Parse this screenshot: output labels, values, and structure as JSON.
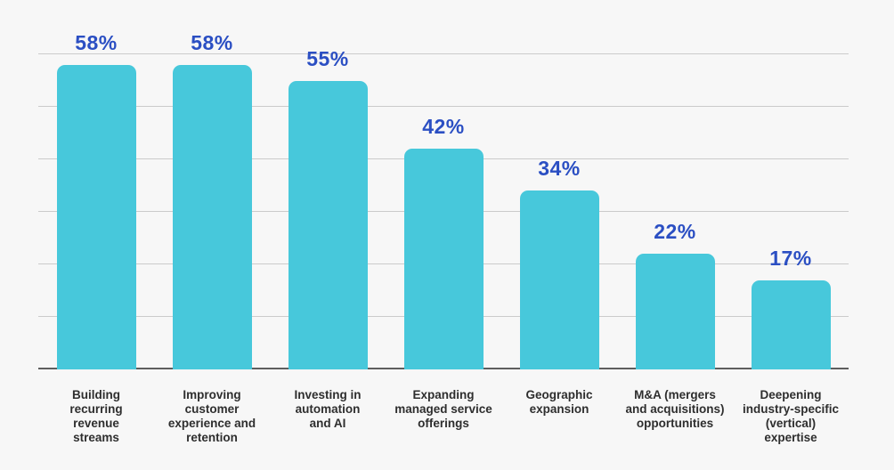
{
  "colors": {
    "background": "#f7f7f7",
    "bar": "#47c8db",
    "value_label": "#2b4fc3",
    "category_label": "#2e2e2e",
    "gridline": "#cbcbcb",
    "baseline": "#5e5e5e"
  },
  "chart_data": {
    "type": "bar",
    "title": "",
    "xlabel": "",
    "ylabel": "",
    "categories": [
      "Building\nrecurring\nrevenue\nstreams",
      "Improving\ncustomer\nexperience and\nretention",
      "Investing in\nautomation\nand AI",
      "Expanding\nmanaged service\nofferings",
      "Geographic\nexpansion",
      "M&A (mergers\nand acquisitions)\nopportunities",
      "Deepening\nindustry-specific\n(vertical)\nexpertise"
    ],
    "values": [
      58,
      58,
      55,
      42,
      34,
      22,
      17
    ],
    "value_labels": [
      "58%",
      "58%",
      "55%",
      "42%",
      "34%",
      "22%",
      "17%"
    ],
    "ylim": [
      0,
      60
    ],
    "grid": true,
    "gridline_percents": [
      0,
      10,
      20,
      30,
      40,
      50,
      60
    ],
    "legend_position": "none",
    "axis_tick_labels_visible": false
  }
}
